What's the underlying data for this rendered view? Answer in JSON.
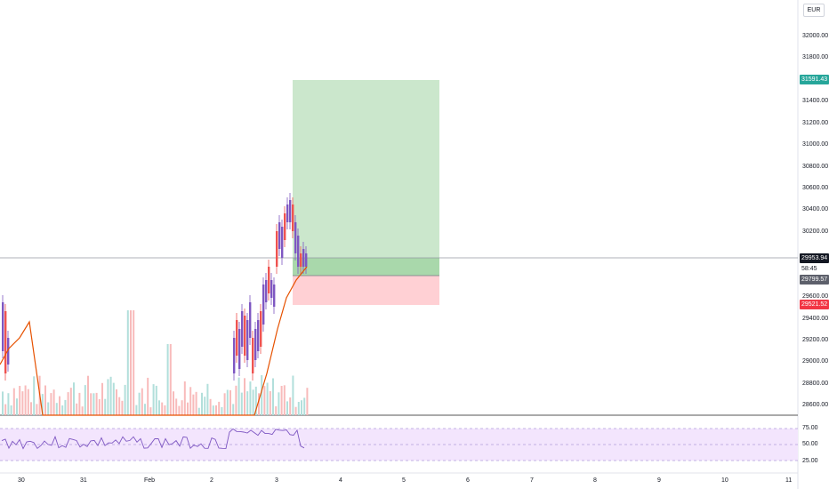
{
  "currency": "EUR",
  "price_axis": {
    "ticks": [
      "32000.00",
      "31800.00",
      "31400.00",
      "31200.00",
      "31000.00",
      "30800.00",
      "30600.00",
      "30400.00",
      "30200.00",
      "29600.00",
      "29400.00",
      "29200.00",
      "29000.00",
      "28800.00",
      "28600.00"
    ],
    "badges": {
      "take_profit": "31591.43",
      "current": "29953.94",
      "countdown": "58:45",
      "entry": "29799.57",
      "stop_loss": "29521.52"
    }
  },
  "time_axis": {
    "labels": [
      "30",
      "31",
      "Feb",
      "2",
      "3",
      "4",
      "5",
      "6",
      "7",
      "8",
      "9",
      "10",
      "11"
    ]
  },
  "oscillator": {
    "levels": [
      "75.00",
      "50.00",
      "25.00"
    ]
  },
  "colors": {
    "up": "#7e57c2",
    "down": "#ef5350",
    "profit_zone": "#c8e6c9",
    "loss_zone": "#ffcdd2",
    "ma_line": "#e65100",
    "rsi_band": "#f3e5fd",
    "take_profit_badge": "#26a69a",
    "current_badge": "#131722",
    "stop_badge": "#f23645"
  },
  "chart_data": {
    "type": "candlestick",
    "y_range": [
      28500,
      32200
    ],
    "take_profit": 31591.43,
    "current_price": 29953.94,
    "entry": 29799.57,
    "stop_loss": 29521.52,
    "rsi_levels": [
      75,
      50,
      25
    ]
  }
}
